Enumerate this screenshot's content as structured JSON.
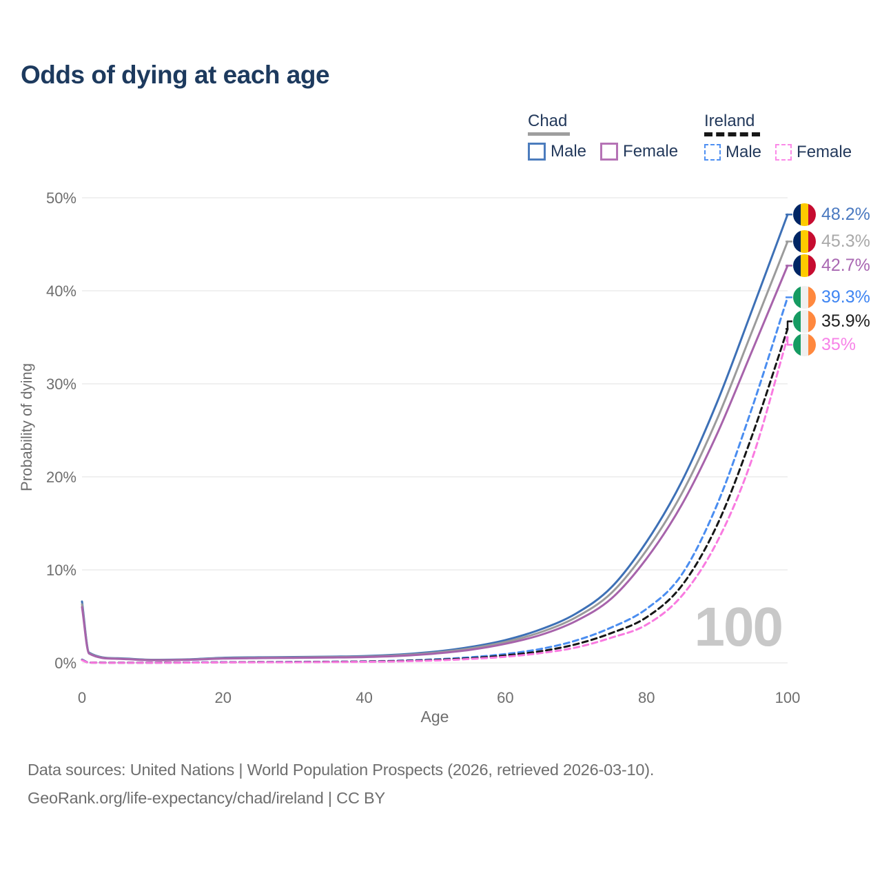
{
  "title": "Odds of dying at each age",
  "watermark": "100",
  "footer": {
    "line1": "Data sources: United Nations | World Population Prospects (2026, retrieved 2026-03-10).",
    "line2": "GeoRank.org/life-expectancy/chad/ireland | CC BY"
  },
  "legend": {
    "groups": [
      {
        "label": "Chad",
        "underline_style": "solid",
        "underline_color": "#9e9e9e",
        "underline_width": 61,
        "items": [
          {
            "label": "Male",
            "color": "#4c7cbd",
            "dashed": false
          },
          {
            "label": "Female",
            "color": "#b573b5",
            "dashed": false
          }
        ]
      },
      {
        "label": "Ireland",
        "underline_style": "dashed",
        "underline_color": "#171717",
        "underline_width": 81,
        "items": [
          {
            "label": "Male",
            "color": "#4f90f2",
            "dashed": true
          },
          {
            "label": "Female",
            "color": "#fb8ae8",
            "dashed": true
          }
        ]
      }
    ]
  },
  "chart_data": {
    "type": "line",
    "title": "Odds of dying at each age",
    "xlabel": "Age",
    "ylabel": "Probability of dying",
    "xlim": [
      0,
      100
    ],
    "ylim": [
      0,
      50
    ],
    "grid": "horizontal",
    "legend_position": "top-right",
    "x_ticks": [
      0,
      20,
      40,
      60,
      80,
      100
    ],
    "y_ticks": [
      0,
      10,
      20,
      30,
      40,
      50
    ],
    "y_tick_labels": [
      "0%",
      "10%",
      "20%",
      "30%",
      "40%",
      "50%"
    ],
    "x_tick_labels": [
      "0",
      "20",
      "40",
      "60",
      "80",
      "100"
    ],
    "ages": [
      0,
      1,
      5,
      10,
      15,
      20,
      25,
      30,
      35,
      40,
      45,
      50,
      55,
      60,
      65,
      70,
      75,
      80,
      85,
      90,
      95,
      100
    ],
    "flags": {
      "chad": [
        "#002664",
        "#fecb00",
        "#c60c30"
      ],
      "ireland": [
        "#169b62",
        "#f0f0f0",
        "#ff883e"
      ]
    },
    "series": [
      {
        "name": "Chad Male",
        "country": "Chad",
        "sex": "Male",
        "flag": "chad",
        "color": "#3d70b6",
        "label_color": "#4a79c0",
        "dash": "solid",
        "end_label": "48.2%",
        "values": [
          6.6,
          1.1,
          0.5,
          0.33,
          0.38,
          0.55,
          0.6,
          0.63,
          0.67,
          0.73,
          0.9,
          1.2,
          1.7,
          2.45,
          3.6,
          5.3,
          8.1,
          13.0,
          19.5,
          28.0,
          38.0,
          48.2
        ]
      },
      {
        "name": "Chad Both sexes",
        "country": "Chad",
        "sex": "Both sexes",
        "flag": "chad",
        "color": "#9b9b9b",
        "label_color": "#a9a9a9",
        "dash": "solid",
        "end_label": "45.3%",
        "values": [
          6.3,
          1.05,
          0.47,
          0.31,
          0.35,
          0.5,
          0.55,
          0.58,
          0.62,
          0.67,
          0.82,
          1.1,
          1.55,
          2.25,
          3.3,
          4.9,
          7.5,
          12.1,
          18.2,
          26.2,
          35.7,
          45.3
        ]
      },
      {
        "name": "Chad Female",
        "country": "Chad",
        "sex": "Female",
        "flag": "chad",
        "color": "#a763ab",
        "label_color": "#a968b2",
        "dash": "solid",
        "end_label": "42.7%",
        "values": [
          6.0,
          1.0,
          0.44,
          0.29,
          0.33,
          0.46,
          0.51,
          0.54,
          0.57,
          0.62,
          0.75,
          1.0,
          1.4,
          2.05,
          3.0,
          4.5,
          6.9,
          11.2,
          17.0,
          24.6,
          33.6,
          42.7
        ]
      },
      {
        "name": "Ireland Male",
        "country": "Ireland",
        "sex": "Male",
        "flag": "ireland",
        "color": "#4a8df0",
        "label_color": "#3f85f2",
        "dash": "dashed",
        "end_label": "39.3%",
        "values": [
          0.35,
          0.04,
          0.02,
          0.02,
          0.05,
          0.08,
          0.09,
          0.11,
          0.13,
          0.16,
          0.24,
          0.38,
          0.6,
          0.95,
          1.5,
          2.4,
          3.8,
          5.8,
          9.5,
          17.0,
          27.5,
          39.3
        ]
      },
      {
        "name": "Ireland Both sexes",
        "country": "Ireland",
        "sex": "Both sexes",
        "flag": "ireland",
        "color": "#161616",
        "label_color": "#1f1f1f",
        "dash": "dashed",
        "end_label": "35.9%",
        "values": [
          0.32,
          0.03,
          0.02,
          0.02,
          0.04,
          0.06,
          0.08,
          0.09,
          0.11,
          0.14,
          0.2,
          0.32,
          0.5,
          0.8,
          1.25,
          2.0,
          3.2,
          4.9,
          8.3,
          14.8,
          24.5,
          35.9
        ]
      },
      {
        "name": "Ireland Female",
        "country": "Ireland",
        "sex": "Female",
        "flag": "ireland",
        "color": "#f97ae0",
        "label_color": "#f783e8",
        "dash": "dashed",
        "end_label": "35%",
        "values": [
          0.29,
          0.03,
          0.01,
          0.01,
          0.03,
          0.05,
          0.06,
          0.07,
          0.09,
          0.11,
          0.16,
          0.26,
          0.42,
          0.66,
          1.05,
          1.65,
          2.7,
          4.1,
          7.2,
          13.0,
          22.0,
          35.0
        ]
      }
    ]
  }
}
